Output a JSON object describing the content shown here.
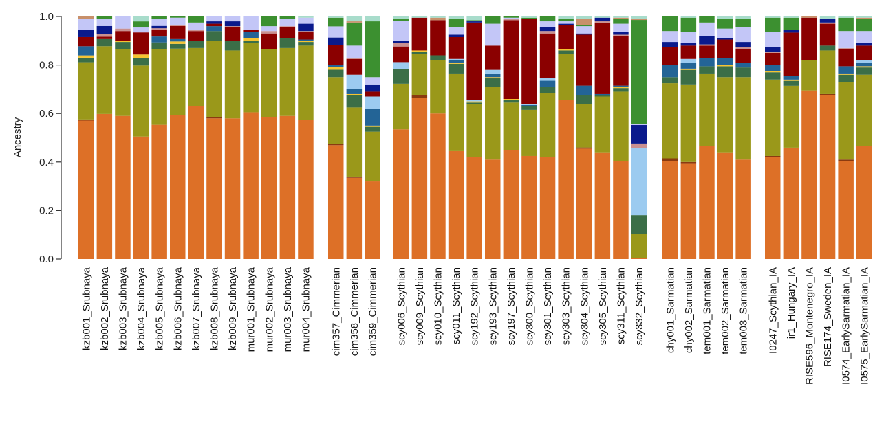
{
  "chart_data": {
    "type": "bar",
    "stacked": true,
    "title": "",
    "xlabel": "",
    "ylabel": "Ancestry",
    "ylim": [
      0,
      1
    ],
    "yticks": [
      "0.0",
      "0.2",
      "0.4",
      "0.6",
      "0.8",
      "1.0"
    ],
    "grid": false,
    "legend": "none",
    "components": [
      {
        "name": "K1",
        "color": "#DD7027"
      },
      {
        "name": "K2",
        "color": "#8B3A0F"
      },
      {
        "name": "K3",
        "color": "#9A981A"
      },
      {
        "name": "K4",
        "color": "#3B6E47"
      },
      {
        "name": "K5",
        "color": "#F5C431"
      },
      {
        "name": "K6",
        "color": "#236496"
      },
      {
        "name": "K7",
        "color": "#9CCBF0"
      },
      {
        "name": "K8",
        "color": "#8B0000"
      },
      {
        "name": "K9",
        "color": "#C99090"
      },
      {
        "name": "K10",
        "color": "#0A1A8C"
      },
      {
        "name": "K11",
        "color": "#C3C6F7"
      },
      {
        "name": "K12",
        "color": "#3C9030"
      },
      {
        "name": "K13",
        "color": "#C8906A"
      },
      {
        "name": "K14",
        "color": "#A8DCCB"
      }
    ],
    "groups": [
      {
        "name": "Srubnaya",
        "samples": [
          {
            "label": "kzb001_Srubnaya",
            "values": [
              0.605,
              0.005,
              0.25,
              0.02,
              0.01,
              0.04,
              0,
              0.04,
              0,
              0.03,
              0.05,
              0,
              0.01,
              0
            ]
          },
          {
            "label": "kzb002_Srubnaya",
            "values": [
              0.61,
              0,
              0.285,
              0.03,
              0,
              0,
              0,
              0.01,
              0.01,
              0.035,
              0.03,
              0.01,
              0,
              0
            ]
          },
          {
            "label": "kzb003_Srubnaya",
            "values": [
              0.59,
              0,
              0.275,
              0.03,
              0.005,
              0,
              0,
              0.04,
              0.01,
              0,
              0.05,
              0,
              0,
              0
            ]
          },
          {
            "label": "kzb004_Srubnaya",
            "values": [
              0.5,
              0,
              0.29,
              0.03,
              0.015,
              0,
              0,
              0.09,
              0,
              0,
              0.02,
              0.025,
              0,
              0.02
            ]
          },
          {
            "label": "kzb005_Srubnaya",
            "values": [
              0.57,
              0,
              0.32,
              0.03,
              0,
              0.025,
              0,
              0.03,
              0.005,
              0.01,
              0.03,
              0.01,
              0,
              0
            ]
          },
          {
            "label": "kzb006_Srubnaya",
            "values": [
              0.605,
              0,
              0.28,
              0.02,
              0.01,
              0.01,
              0,
              0.055,
              0.005,
              0,
              0.03,
              0.005,
              0,
              0
            ]
          },
          {
            "label": "kzb007_Srubnaya",
            "values": [
              0.63,
              0,
              0.24,
              0.03,
              0,
              0,
              0,
              0.04,
              0.005,
              0,
              0.03,
              0.025,
              0,
              0
            ]
          },
          {
            "label": "kzb008_Srubnaya",
            "values": [
              0.58,
              0.005,
              0.315,
              0.04,
              0,
              0.02,
              0,
              0.01,
              0,
              0.01,
              0.02,
              0,
              0,
              0
            ]
          },
          {
            "label": "kzb009_Srubnaya",
            "values": [
              0.58,
              0,
              0.28,
              0.04,
              0,
              0,
              0,
              0.055,
              0.005,
              0.02,
              0.02,
              0,
              0,
              0
            ]
          },
          {
            "label": "mur001_Srubnaya",
            "values": [
              0.605,
              0,
              0.285,
              0.01,
              0.01,
              0.025,
              0,
              0.01,
              0,
              0,
              0.055,
              0,
              0,
              0
            ]
          },
          {
            "label": "mur002_Srubnaya",
            "values": [
              0.585,
              0,
              0.28,
              0,
              0,
              0,
              0,
              0.065,
              0.01,
              0,
              0.02,
              0.04,
              0,
              0
            ]
          },
          {
            "label": "mur003_Srubnaya",
            "values": [
              0.59,
              0,
              0.28,
              0.04,
              0,
              0,
              0,
              0.045,
              0.005,
              0,
              0.03,
              0.01,
              0,
              0
            ]
          },
          {
            "label": "mur004_Srubnaya",
            "values": [
              0.575,
              0,
              0.305,
              0.015,
              0.005,
              0.005,
              0,
              0.03,
              0.005,
              0.03,
              0.025,
              0,
              0,
              0.005
            ]
          }
        ]
      },
      {
        "name": "Cimmerian",
        "samples": [
          {
            "label": "cim357_Cimmerian",
            "values": [
              0.46,
              0.005,
              0.27,
              0.03,
              0.01,
              0.01,
              0,
              0.08,
              0,
              0.03,
              0.045,
              0.035,
              0,
              0.005
            ]
          },
          {
            "label": "cim358_Cimmerian",
            "values": [
              0.335,
              0.005,
              0.285,
              0.05,
              0.005,
              0.02,
              0.06,
              0.065,
              0.005,
              0,
              0.05,
              0.095,
              0.005,
              0.02
            ]
          },
          {
            "label": "cim359_Cimmerian",
            "values": [
              0.32,
              0,
              0.205,
              0.02,
              0.005,
              0.07,
              0.05,
              0.02,
              0,
              0.03,
              0.03,
              0.23,
              0,
              0.02
            ]
          }
        ]
      },
      {
        "name": "Scythian",
        "samples": [
          {
            "label": "scy006_Scythian",
            "values": [
              0.54,
              0,
              0.19,
              0.06,
              0,
              0,
              0.03,
              0.065,
              0.015,
              0.01,
              0.08,
              0.01,
              0,
              0.01
            ]
          },
          {
            "label": "scy009_Scythian",
            "values": [
              0.665,
              0.01,
              0.17,
              0.01,
              0.005,
              0,
              0,
              0.135,
              0,
              0,
              0,
              0,
              0,
              0.005
            ]
          },
          {
            "label": "scy010_Scythian",
            "values": [
              0.6,
              0,
              0.22,
              0.02,
              0,
              0,
              0,
              0.145,
              0,
              0,
              0,
              0,
              0.01,
              0.005
            ]
          },
          {
            "label": "scy011_Scythian",
            "values": [
              0.445,
              0,
              0.32,
              0.04,
              0.005,
              0.01,
              0.005,
              0.09,
              0,
              0.01,
              0.03,
              0.035,
              0,
              0.01
            ]
          },
          {
            "label": "scy192_Scythian",
            "values": [
              0.42,
              0,
              0.22,
              0.005,
              0.005,
              0,
              0.005,
              0.32,
              0,
              0.005,
              0,
              0.005,
              0,
              0.015
            ]
          },
          {
            "label": "scy193_Scythian",
            "values": [
              0.41,
              0,
              0.3,
              0.035,
              0.005,
              0.015,
              0.015,
              0.1,
              0,
              0,
              0.09,
              0.03,
              0,
              0
            ]
          },
          {
            "label": "scy197_Scythian",
            "values": [
              0.45,
              0,
              0.195,
              0.01,
              0.005,
              0,
              0,
              0.325,
              0.005,
              0,
              0.005,
              0.005,
              0,
              0
            ]
          },
          {
            "label": "scy300_Scythian",
            "values": [
              0.425,
              0,
              0.19,
              0.015,
              0,
              0.005,
              0.005,
              0.35,
              0,
              0,
              0,
              0.005,
              0,
              0.005
            ]
          },
          {
            "label": "scy301_Scythian",
            "values": [
              0.42,
              0,
              0.265,
              0.025,
              0,
              0.025,
              0.01,
              0.185,
              0.01,
              0.015,
              0.025,
              0.02,
              0,
              0
            ]
          },
          {
            "label": "scy303_Scythian",
            "values": [
              0.655,
              0,
              0.19,
              0.015,
              0.005,
              0,
              0,
              0.1,
              0,
              0.005,
              0.01,
              0.01,
              0,
              0.01
            ]
          },
          {
            "label": "scy304_Scythian",
            "values": [
              0.455,
              0.005,
              0.18,
              0.035,
              0,
              0.04,
              0,
              0.21,
              0,
              0.005,
              0.03,
              0.005,
              0.025,
              0.01
            ]
          },
          {
            "label": "scy305_Scythian",
            "values": [
              0.44,
              0,
              0.23,
              0.005,
              0,
              0.005,
              0,
              0.295,
              0.005,
              0.015,
              0,
              0,
              0,
              0.005
            ]
          },
          {
            "label": "scy311_Scythian",
            "values": [
              0.405,
              0,
              0.285,
              0.015,
              0.005,
              0.005,
              0,
              0.205,
              0.005,
              0.01,
              0.035,
              0.02,
              0.005,
              0.005
            ]
          },
          {
            "label": "scy332_Scythian",
            "values": [
              0.005,
              0,
              0.105,
              0.08,
              0,
              0,
              0.29,
              0,
              0.02,
              0.08,
              0.005,
              0.45,
              0.005,
              0.01
            ]
          }
        ]
      },
      {
        "name": "Sarmatian",
        "samples": [
          {
            "label": "chy001_Sarmatian",
            "values": [
              0.405,
              0.01,
              0.31,
              0.025,
              0,
              0.05,
              0,
              0.075,
              0,
              0.02,
              0.045,
              0.06,
              0,
              0
            ]
          },
          {
            "label": "chy002_Sarmatian",
            "values": [
              0.395,
              0.005,
              0.32,
              0.06,
              0.005,
              0.025,
              0.015,
              0.055,
              0,
              0.01,
              0.045,
              0.06,
              0,
              0.005
            ]
          },
          {
            "label": "tem001_Sarmatian",
            "values": [
              0.465,
              0,
              0.3,
              0.03,
              0,
              0.035,
              0,
              0.05,
              0.005,
              0.035,
              0.055,
              0.025,
              0,
              0
            ]
          },
          {
            "label": "tem002_Sarmatian",
            "values": [
              0.44,
              0,
              0.31,
              0.045,
              0.005,
              0.03,
              0,
              0.075,
              0,
              0.005,
              0.04,
              0.04,
              0,
              0.01
            ]
          },
          {
            "label": "tem003_Sarmatian",
            "values": [
              0.41,
              0,
              0.34,
              0.04,
              0,
              0.02,
              0,
              0.055,
              0.01,
              0.02,
              0.06,
              0.035,
              0,
              0.01
            ]
          }
        ]
      },
      {
        "name": "Reference",
        "samples": [
          {
            "label": "I0247_Scythian_IA",
            "values": [
              0.42,
              0.005,
              0.315,
              0.03,
              0.005,
              0.025,
              0,
              0.05,
              0.005,
              0.02,
              0.06,
              0.06,
              0,
              0.005
            ]
          },
          {
            "label": "ir1_Hungary_IA",
            "values": [
              0.45,
              0,
              0.25,
              0.02,
              0.005,
              0.015,
              0,
              0.175,
              0,
              0.01,
              0,
              0.05,
              0,
              0.005
            ]
          },
          {
            "label": "RISE596_Montenegro_IA",
            "values": [
              0.695,
              0,
              0.125,
              0,
              0,
              0,
              0,
              0.175,
              0,
              0,
              0,
              0,
              0.005,
              0
            ]
          },
          {
            "label": "RISE174_Sweden_IA",
            "values": [
              0.675,
              0.005,
              0.18,
              0.02,
              0,
              0,
              0,
              0.09,
              0.005,
              0.015,
              0,
              0,
              0,
              0.01
            ]
          },
          {
            "label": "I0574_EarlySarmatian_IA",
            "values": [
              0.405,
              0.005,
              0.32,
              0.03,
              0.005,
              0.03,
              0,
              0.07,
              0.005,
              0,
              0.07,
              0.055,
              0,
              0.005
            ]
          },
          {
            "label": "I0575_EarlySarmatian_IA",
            "values": [
              0.465,
              0,
              0.295,
              0.03,
              0.005,
              0.015,
              0.01,
              0.06,
              0,
              0.01,
              0.05,
              0.05,
              0.005,
              0.005
            ]
          }
        ]
      }
    ]
  }
}
